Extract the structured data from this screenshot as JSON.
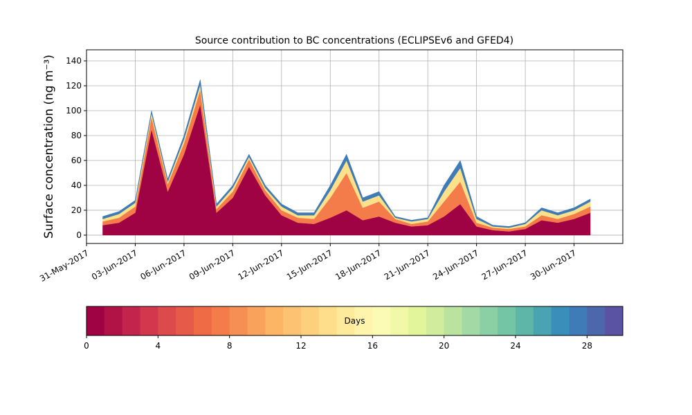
{
  "chart_data": [
    {
      "type": "stacked-area",
      "title": "Source contribution to BC concentrations (ECLIPSEv6 and GFED4)",
      "y_label": "Surface concentration (ng m⁻³)",
      "x": [
        "2017-06-01",
        "2017-06-02",
        "2017-06-03",
        "2017-06-04",
        "2017-06-05",
        "2017-06-06",
        "2017-06-07",
        "2017-06-08",
        "2017-06-09",
        "2017-06-10",
        "2017-06-11",
        "2017-06-12",
        "2017-06-13",
        "2017-06-14",
        "2017-06-15",
        "2017-06-16",
        "2017-06-17",
        "2017-06-18",
        "2017-06-19",
        "2017-06-20",
        "2017-06-21",
        "2017-06-22",
        "2017-06-23",
        "2017-06-24",
        "2017-06-25",
        "2017-06-26",
        "2017-06-27",
        "2017-06-28",
        "2017-06-29",
        "2017-06-30",
        "2017-07-01"
      ],
      "series": [
        {
          "color": "#a00343",
          "values": [
            8,
            10,
            18,
            85,
            35,
            65,
            105,
            18,
            30,
            55,
            32,
            16,
            10,
            9,
            14,
            20,
            12,
            15,
            10,
            7,
            8,
            15,
            25,
            7,
            4,
            3,
            5,
            12,
            10,
            13,
            18
          ]
        },
        {
          "color": "#f47c4a",
          "values": [
            3,
            4,
            5,
            10,
            6,
            9,
            12,
            3,
            5,
            6,
            4,
            4,
            4,
            4,
            16,
            30,
            10,
            12,
            3,
            2,
            3,
            12,
            18,
            3,
            2,
            2,
            2,
            4,
            3,
            4,
            5
          ]
        },
        {
          "color": "#fde08a",
          "values": [
            2,
            3,
            3,
            3,
            2,
            3,
            4,
            2,
            3,
            2,
            2,
            3,
            2,
            3,
            6,
            10,
            5,
            5,
            1,
            2,
            2,
            8,
            11,
            3,
            1,
            1,
            2,
            4,
            3,
            3,
            4
          ]
        },
        {
          "color": "#3f7bb6",
          "values": [
            2,
            2,
            2,
            2,
            2,
            3,
            4,
            2,
            2,
            2,
            2,
            2,
            2,
            2,
            4,
            5,
            3,
            3,
            1,
            1,
            1,
            5,
            6,
            2,
            1,
            1,
            1,
            2,
            2,
            2,
            2
          ]
        }
      ],
      "xlim": [
        "2017-05-31",
        "2017-07-03"
      ],
      "xticks": [
        {
          "value": "2017-05-31",
          "label": "31-May-2017"
        },
        {
          "value": "2017-06-03",
          "label": "03-Jun-2017"
        },
        {
          "value": "2017-06-06",
          "label": "06-Jun-2017"
        },
        {
          "value": "2017-06-09",
          "label": "09-Jun-2017"
        },
        {
          "value": "2017-06-12",
          "label": "12-Jun-2017"
        },
        {
          "value": "2017-06-15",
          "label": "15-Jun-2017"
        },
        {
          "value": "2017-06-18",
          "label": "18-Jun-2017"
        },
        {
          "value": "2017-06-21",
          "label": "21-Jun-2017"
        },
        {
          "value": "2017-06-24",
          "label": "24-Jun-2017"
        },
        {
          "value": "2017-06-27",
          "label": "27-Jun-2017"
        },
        {
          "value": "2017-06-30",
          "label": "30-Jun-2017"
        }
      ],
      "ylim": [
        -6.7,
        148.9
      ],
      "yticks": [
        0,
        20,
        40,
        60,
        80,
        100,
        120,
        140
      ],
      "grid": true
    },
    {
      "type": "colorbar",
      "label": "Days",
      "colors": [
        "#a00343",
        "#b21347",
        "#c3244b",
        "#d2374e",
        "#dc4a4c",
        "#e65a49",
        "#ef6b45",
        "#f47c4a",
        "#f68f53",
        "#f9a25c",
        "#fcb465",
        "#fdc372",
        "#fdd07e",
        "#fede8a",
        "#feea9b",
        "#fff4ac",
        "#fcfbb5",
        "#f1f9a8",
        "#e3f59b",
        "#d0ec9c",
        "#bae3a0",
        "#a3d9a4",
        "#8bcfa4",
        "#73c5a5",
        "#5eb6a8",
        "#4aa3b1",
        "#3a8fba",
        "#3f7bb6",
        "#4d67ac",
        "#5a52a3"
      ],
      "xlim": [
        0,
        30
      ],
      "xticks": [
        0,
        4,
        8,
        12,
        16,
        20,
        24,
        28
      ]
    }
  ]
}
